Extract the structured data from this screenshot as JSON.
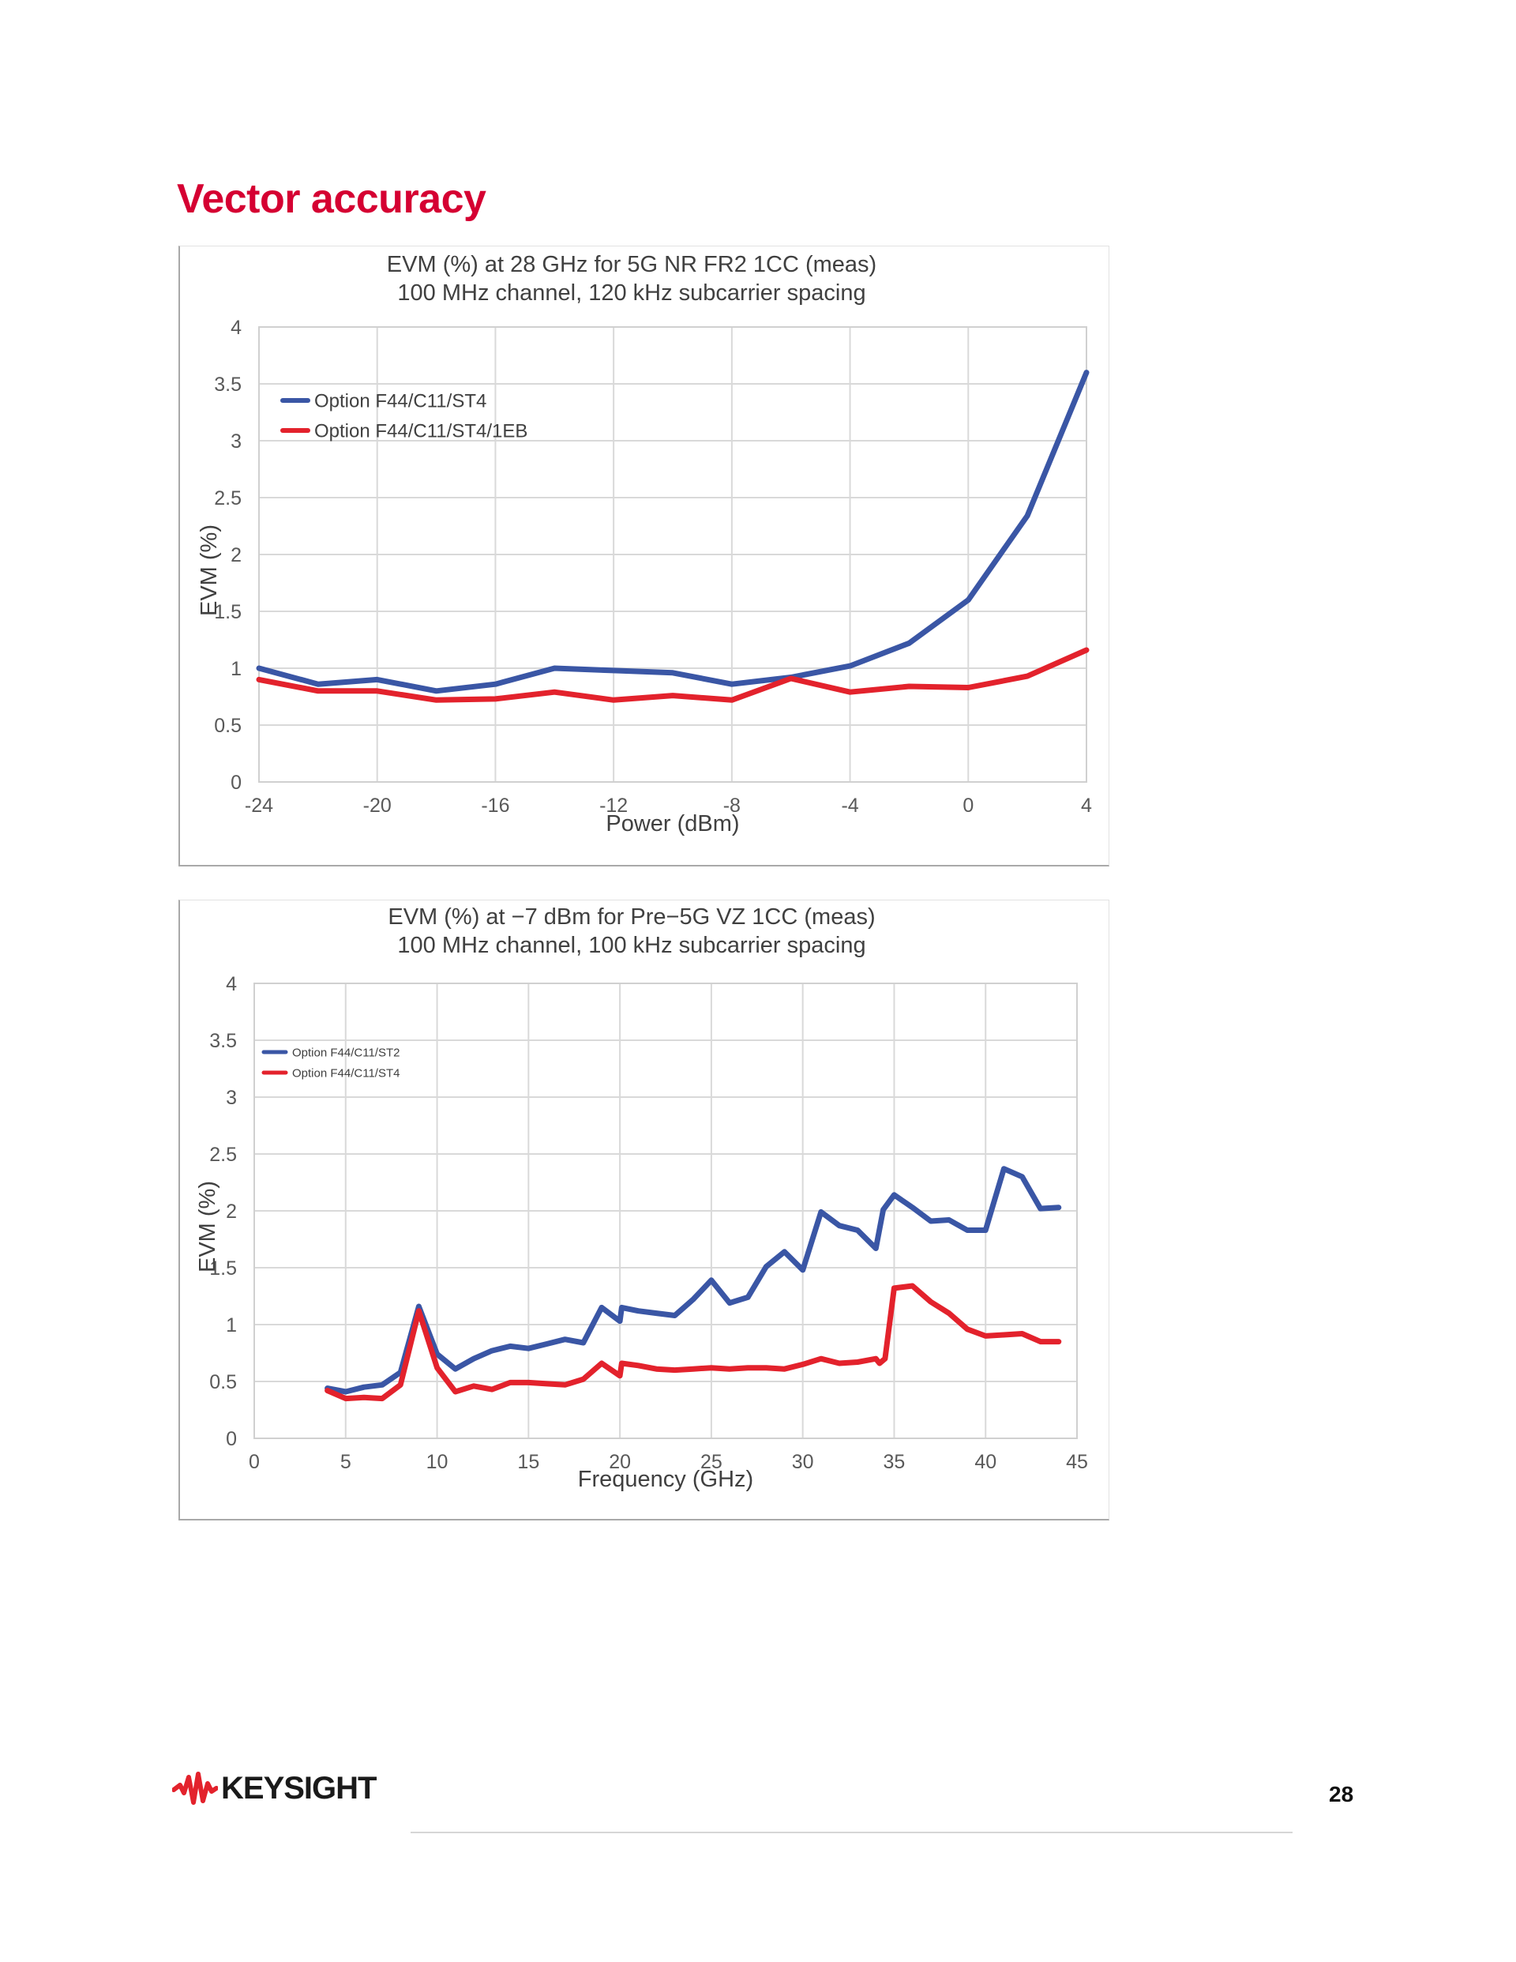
{
  "page": {
    "title": "Vector accuracy",
    "page_number": "28",
    "logo_text": "KEYSIGHT",
    "accent_color": "#d50032"
  },
  "chart_data": [
    {
      "type": "line",
      "title": "EVM (%) at 28 GHz for 5G NR FR2 1CC (meas)",
      "subtitle": "100 MHz channel, 120 kHz subcarrier spacing",
      "xlabel": "Power (dBm)",
      "ylabel": "EVM (%)",
      "xlim": [
        -24,
        4
      ],
      "ylim": [
        0,
        4
      ],
      "x_ticks": [
        "-24",
        "-20",
        "-16",
        "-12",
        "-8",
        "-4",
        "0",
        "4"
      ],
      "x_tick_values": [
        -24,
        -20,
        -16,
        -12,
        -8,
        -4,
        0,
        4
      ],
      "y_ticks": [
        "0",
        "0.5",
        "1",
        "1.5",
        "2",
        "2.5",
        "3",
        "3.5",
        "4"
      ],
      "y_tick_values": [
        0,
        0.5,
        1,
        1.5,
        2,
        2.5,
        3,
        3.5,
        4
      ],
      "grid": true,
      "legend_position": "top-left",
      "series": [
        {
          "name": "Option F44/C11/ST4",
          "color": "#3a56a5",
          "x": [
            -24,
            -22,
            -20,
            -18,
            -16,
            -14,
            -12,
            -10,
            -8,
            -6,
            -4,
            -2,
            0,
            2,
            4
          ],
          "values": [
            1.0,
            0.86,
            0.9,
            0.8,
            0.86,
            1.0,
            0.98,
            0.96,
            0.86,
            0.92,
            1.02,
            1.22,
            1.6,
            2.34,
            3.6
          ]
        },
        {
          "name": "Option F44/C11/ST4/1EB",
          "color": "#e3222c",
          "x": [
            -24,
            -22,
            -20,
            -18,
            -16,
            -14,
            -12,
            -10,
            -8,
            -6,
            -4,
            -2,
            0,
            2,
            4
          ],
          "values": [
            0.9,
            0.8,
            0.8,
            0.72,
            0.73,
            0.79,
            0.72,
            0.76,
            0.72,
            0.91,
            0.79,
            0.84,
            0.83,
            0.93,
            1.16
          ]
        }
      ]
    },
    {
      "type": "line",
      "title": "EVM (%) at −7 dBm for Pre−5G VZ 1CC (meas)",
      "subtitle": "100 MHz channel, 100 kHz subcarrier spacing",
      "xlabel": "Frequency (GHz)",
      "ylabel": "EVM (%)",
      "xlim": [
        0,
        45
      ],
      "ylim": [
        0,
        4
      ],
      "x_ticks": [
        "0",
        "5",
        "10",
        "15",
        "20",
        "25",
        "30",
        "35",
        "40",
        "45"
      ],
      "x_tick_values": [
        0,
        5,
        10,
        15,
        20,
        25,
        30,
        35,
        40,
        45
      ],
      "y_ticks": [
        "0",
        "0.5",
        "1",
        "1.5",
        "2",
        "2.5",
        "3",
        "3.5",
        "4"
      ],
      "y_tick_values": [
        0,
        0.5,
        1,
        1.5,
        2,
        2.5,
        3,
        3.5,
        4
      ],
      "grid": true,
      "legend_position": "top-left",
      "series": [
        {
          "name": "Option F44/C11/ST2",
          "color": "#3a56a5",
          "x": [
            4,
            5,
            6,
            7,
            8,
            9,
            10,
            11,
            12,
            13,
            14,
            15,
            16,
            17,
            18,
            19,
            20,
            20.1,
            21,
            22,
            23,
            24,
            25,
            26,
            27,
            28,
            29,
            30,
            31,
            32,
            33,
            34,
            34.4,
            35,
            36,
            37,
            38,
            39,
            40,
            41,
            42,
            43,
            44
          ],
          "values": [
            0.44,
            0.41,
            0.45,
            0.47,
            0.58,
            1.16,
            0.74,
            0.61,
            0.7,
            0.77,
            0.81,
            0.79,
            0.83,
            0.87,
            0.84,
            1.15,
            1.03,
            1.15,
            1.12,
            1.1,
            1.08,
            1.22,
            1.39,
            1.19,
            1.24,
            1.51,
            1.64,
            1.48,
            1.99,
            1.87,
            1.83,
            1.67,
            2.01,
            2.14,
            2.03,
            1.91,
            1.92,
            1.83,
            1.83,
            2.37,
            2.3,
            2.02,
            2.03
          ]
        },
        {
          "name": "Option F44/C11/ST4",
          "color": "#e3222c",
          "x": [
            4,
            5,
            6,
            7,
            8,
            9,
            10,
            11,
            12,
            13,
            14,
            15,
            16,
            17,
            18,
            19,
            20,
            20.1,
            21,
            22,
            23,
            24,
            25,
            26,
            27,
            28,
            29,
            30,
            31,
            32,
            33,
            34,
            34.2,
            34.5,
            35,
            36,
            37,
            38,
            39,
            40,
            41,
            42,
            43,
            44
          ],
          "values": [
            0.42,
            0.35,
            0.36,
            0.35,
            0.47,
            1.12,
            0.62,
            0.41,
            0.46,
            0.43,
            0.49,
            0.49,
            0.48,
            0.47,
            0.52,
            0.66,
            0.55,
            0.66,
            0.64,
            0.61,
            0.6,
            0.61,
            0.62,
            0.61,
            0.62,
            0.62,
            0.61,
            0.65,
            0.7,
            0.66,
            0.67,
            0.7,
            0.66,
            0.7,
            1.32,
            1.34,
            1.2,
            1.1,
            0.96,
            0.9,
            0.91,
            0.92,
            0.85,
            0.85
          ]
        }
      ]
    }
  ]
}
